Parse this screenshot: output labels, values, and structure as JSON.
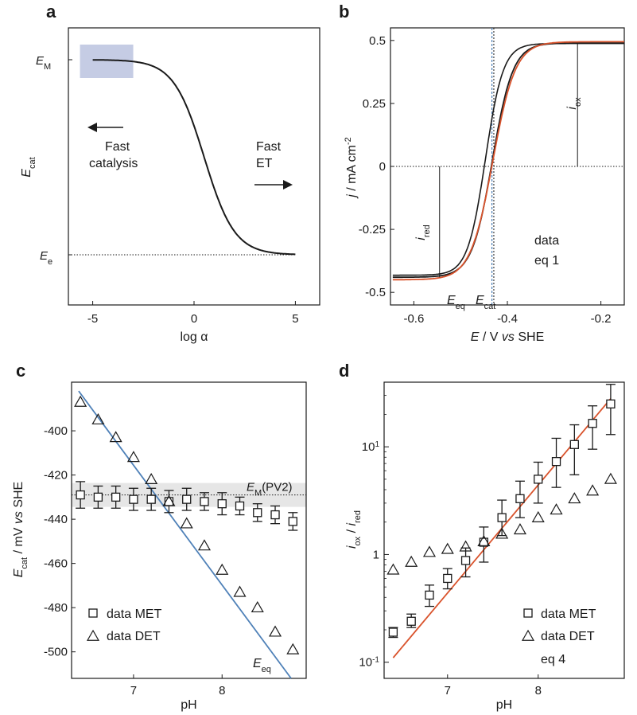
{
  "chart_data": [
    {
      "panel": "a",
      "type": "line",
      "xlabel": "log α",
      "ylabel": "E_cat",
      "xlim": [
        -6.2,
        6.2
      ],
      "xticks": [
        "-5",
        "0",
        "5"
      ],
      "y_levels": {
        "E_M": "E_M",
        "E_e": "E_e"
      },
      "ytick_labels": [
        "E_M",
        "E_e"
      ],
      "curve": {
        "x_center": 0.5,
        "width": 0.75,
        "x_range": [
          -5,
          5
        ]
      },
      "annotations": [
        "Fast catalysis",
        "Fast ET"
      ],
      "shaded_region": {
        "x": [
          -5,
          -3
        ],
        "level": "E_M"
      }
    },
    {
      "panel": "b",
      "type": "line",
      "xlabel": "E / V vs SHE",
      "ylabel": "j / mA cm^-2",
      "xlim": [
        -0.65,
        -0.15
      ],
      "ylim": [
        -0.55,
        0.55
      ],
      "xticks": [
        -0.6,
        -0.4,
        -0.2
      ],
      "yticks": [
        0.5,
        0.25,
        0,
        -0.25,
        -0.5
      ],
      "ytick_labels": [
        "0.5",
        "0.25",
        "0",
        "-0.25",
        "-0.5"
      ],
      "xtick_labels": [
        "-0.6",
        "-0.4",
        "-0.2"
      ],
      "E_eq": -0.433,
      "E_cat": -0.429,
      "i_red": {
        "x": -0.545,
        "from": -0.44,
        "to": 0
      },
      "i_ox": {
        "x": -0.25,
        "from": 0,
        "to": 0.49
      },
      "series": [
        {
          "name": "data",
          "color": "#1a1a1a"
        },
        {
          "name": "eq 1",
          "color": "#d9532c"
        }
      ],
      "vline_labels": [
        "E_eq",
        "E_cat"
      ],
      "i_labels": [
        "i_red",
        "i_ox"
      ]
    },
    {
      "panel": "c",
      "type": "scatter",
      "xlabel": "pH",
      "ylabel": "E_cat / mV vs SHE",
      "xlim": [
        6.3,
        8.95
      ],
      "ylim": [
        -512,
        -378
      ],
      "xticks": [
        7,
        8
      ],
      "yticks": [
        -400,
        -420,
        -440,
        -460,
        -480,
        -500
      ],
      "E_M_PV2": -429,
      "E_M_label": "E_M(PV2)",
      "series": [
        {
          "name": "data MET",
          "marker": "square",
          "x": [
            6.4,
            6.6,
            6.8,
            7.0,
            7.2,
            7.4,
            7.6,
            7.8,
            8.0,
            8.2,
            8.4,
            8.6,
            8.8
          ],
          "y": [
            -429,
            -430,
            -430,
            -431,
            -431,
            -432,
            -431,
            -432,
            -433,
            -434,
            -437,
            -438,
            -441
          ],
          "err": [
            6,
            5,
            5,
            5,
            5,
            5,
            5,
            4,
            5,
            4,
            4,
            4,
            4
          ]
        },
        {
          "name": "data DET",
          "marker": "triangle",
          "x": [
            6.4,
            6.6,
            6.8,
            7.0,
            7.2,
            7.4,
            7.6,
            7.8,
            8.0,
            8.2,
            8.4,
            8.6,
            8.8
          ],
          "y": [
            -387,
            -395,
            -403,
            -412,
            -422,
            -432,
            -442,
            -452,
            -463,
            -473,
            -480,
            -491,
            -499
          ]
        },
        {
          "name": "E_eq",
          "type": "line",
          "color": "#4f81b8",
          "x": [
            6.38,
            8.78
          ],
          "y": [
            -382,
            -512
          ]
        }
      ]
    },
    {
      "panel": "d",
      "type": "scatter",
      "xlabel": "pH",
      "ylabel": "i_ox / i_red",
      "xlim": [
        6.3,
        8.95
      ],
      "ylim_log10": [
        -1.15,
        1.6
      ],
      "xticks": [
        7,
        8
      ],
      "yticks": [
        0.1,
        1,
        10
      ],
      "series": [
        {
          "name": "data MET",
          "marker": "square",
          "x": [
            6.4,
            6.6,
            6.8,
            7.0,
            7.2,
            7.4,
            7.6,
            7.8,
            8.0,
            8.2,
            8.4,
            8.6,
            8.8
          ],
          "y": [
            0.19,
            0.24,
            0.42,
            0.6,
            0.88,
            1.3,
            2.2,
            3.3,
            5.0,
            7.3,
            10.5,
            16.5,
            25
          ],
          "lo": [
            0.17,
            0.21,
            0.33,
            0.48,
            0.62,
            0.85,
            1.5,
            2.2,
            3.0,
            4.2,
            5.5,
            9.5,
            13
          ],
          "hi": [
            0.21,
            0.28,
            0.52,
            0.74,
            1.15,
            1.8,
            3.2,
            4.8,
            7.2,
            12,
            16,
            24,
            38
          ]
        },
        {
          "name": "data DET",
          "marker": "triangle",
          "x": [
            6.4,
            6.6,
            6.8,
            7.0,
            7.2,
            7.4,
            7.6,
            7.8,
            8.0,
            8.2,
            8.4,
            8.6,
            8.8
          ],
          "y": [
            0.72,
            0.85,
            1.05,
            1.12,
            1.18,
            1.32,
            1.55,
            1.7,
            2.2,
            2.6,
            3.3,
            3.9,
            5.0
          ]
        },
        {
          "name": "eq 4",
          "type": "line",
          "color": "#d9532c",
          "x": [
            6.4,
            8.8
          ],
          "y": [
            0.11,
            28
          ]
        }
      ]
    }
  ]
}
